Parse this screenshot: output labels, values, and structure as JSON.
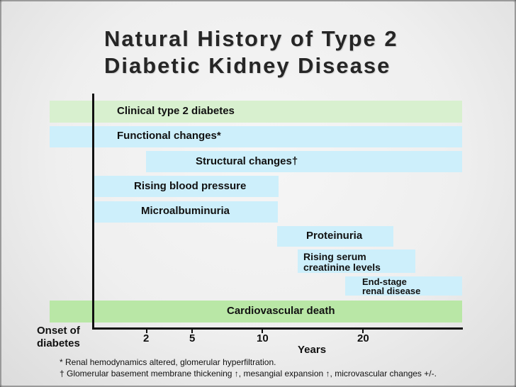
{
  "title": {
    "line1": "Natural History of Type 2",
    "line2": "Diabetic Kidney Disease"
  },
  "stages": {
    "clinical": "Clinical type 2 diabetes",
    "functional": "Functional changes*",
    "structural": "Structural changes†",
    "blood_pressure": "Rising blood pressure",
    "microalbuminuria": "Microalbuminuria",
    "proteinuria": "Proteinuria",
    "creatinine_line1": "Rising serum",
    "creatinine_line2": "creatinine levels",
    "esrd_line1": "End-stage",
    "esrd_line2": "renal disease",
    "cardio": "Cardiovascular death"
  },
  "axis": {
    "onset_line1": "Onset of",
    "onset_line2": "diabetes",
    "ticks": [
      "2",
      "5",
      "10",
      "20"
    ],
    "xlabel": "Years"
  },
  "footnotes": {
    "note1": "* Renal hemodynamics altered, glomerular hyperfiltration.",
    "note2": "† Glomerular basement membrane thickening ↑, mesangial expansion ↑, microvascular changes +/-."
  },
  "colors": {
    "light_blue": "#cdeffb",
    "light_green": "#d8f0cf",
    "green": "#b9e7a6"
  }
}
